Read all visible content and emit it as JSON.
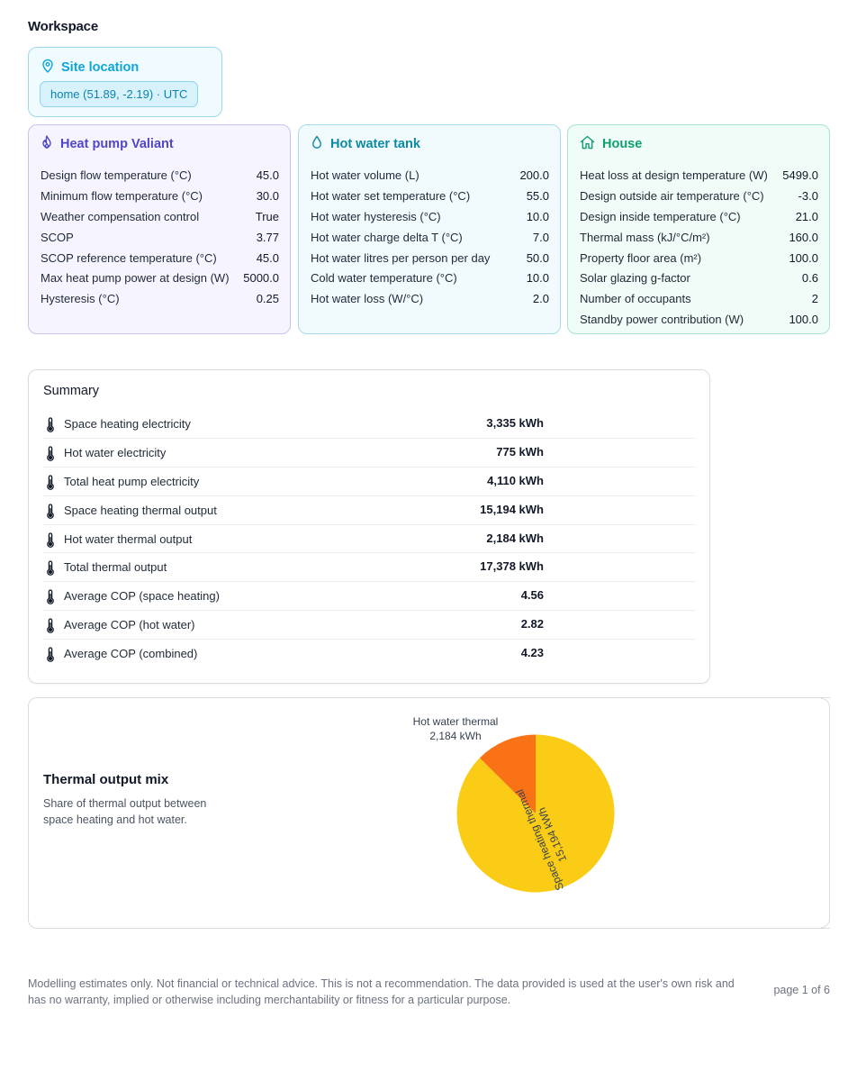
{
  "workspace": {
    "title": "Workspace"
  },
  "site": {
    "title": "Site location",
    "chip": "home (51.89, -2.19) · UTC"
  },
  "heat_pump": {
    "title": "Heat pump Valiant",
    "params": [
      {
        "label": "Design flow temperature (°C)",
        "value": "45.0"
      },
      {
        "label": "Minimum flow temperature (°C)",
        "value": "30.0"
      },
      {
        "label": "Weather compensation control",
        "value": "True"
      },
      {
        "label": "SCOP",
        "value": "3.77"
      },
      {
        "label": "SCOP reference temperature (°C)",
        "value": "45.0"
      },
      {
        "label": "Max heat pump power at design (W)",
        "value": "5000.0"
      },
      {
        "label": "Hysteresis (°C)",
        "value": "0.25"
      }
    ]
  },
  "hot_water": {
    "title": "Hot water tank",
    "params": [
      {
        "label": "Hot water volume (L)",
        "value": "200.0"
      },
      {
        "label": "Hot water set temperature (°C)",
        "value": "55.0"
      },
      {
        "label": "Hot water hysteresis (°C)",
        "value": "10.0"
      },
      {
        "label": "Hot water charge delta T (°C)",
        "value": "7.0"
      },
      {
        "label": "Hot water litres per person per day",
        "value": "50.0"
      },
      {
        "label": "Cold water temperature (°C)",
        "value": "10.0"
      },
      {
        "label": "Hot water loss (W/°C)",
        "value": "2.0"
      }
    ]
  },
  "house": {
    "title": "House",
    "params": [
      {
        "label": "Heat loss at design temperature (W)",
        "value": "5499.0"
      },
      {
        "label": "Design outside air temperature (°C)",
        "value": "-3.0"
      },
      {
        "label": "Design inside temperature (°C)",
        "value": "21.0"
      },
      {
        "label": "Thermal mass (kJ/°C/m²)",
        "value": "160.0"
      },
      {
        "label": "Property floor area (m²)",
        "value": "100.0"
      },
      {
        "label": "Solar glazing g-factor",
        "value": "0.6"
      },
      {
        "label": "Number of occupants",
        "value": "2"
      },
      {
        "label": "Standby power contribution (W)",
        "value": "100.0"
      }
    ]
  },
  "summary": {
    "title": "Summary",
    "rows": [
      {
        "label": "Space heating electricity",
        "value": "3,335 kWh"
      },
      {
        "label": "Hot water electricity",
        "value": "775 kWh"
      },
      {
        "label": "Total heat pump electricity",
        "value": "4,110 kWh"
      },
      {
        "label": "Space heating thermal output",
        "value": "15,194 kWh"
      },
      {
        "label": "Hot water thermal output",
        "value": "2,184 kWh"
      },
      {
        "label": "Total thermal output",
        "value": "17,378 kWh"
      },
      {
        "label": "Average COP (space heating)",
        "value": "4.56"
      },
      {
        "label": "Average COP (hot water)",
        "value": "2.82"
      },
      {
        "label": "Average COP (combined)",
        "value": "4.23"
      }
    ]
  },
  "mix": {
    "title": "Thermal output mix",
    "description": "Share of thermal output between space heating and hot water."
  },
  "chart_data": {
    "type": "pie",
    "title": "",
    "slices": [
      {
        "name": "Space heating thermal",
        "value": 15194,
        "label": "15,194 kWh",
        "color": "#facc15"
      },
      {
        "name": "Hot water thermal",
        "value": 2184,
        "label": "2,184 kWh",
        "color": "#f97316"
      }
    ]
  },
  "footer": {
    "disclaimer": "Modelling estimates only. Not financial or technical advice. This is not a recommendation. The data provided is used at the user's own risk and has no warranty, implied or otherwise including merchantability or fitness for a particular purpose.",
    "page": "page 1 of 6"
  },
  "icons": {
    "site": "map-pin-icon",
    "heat_pump": "flame-icon",
    "hot_water": "droplet-icon",
    "house": "home-icon",
    "summary_row": "thermometer-icon"
  }
}
